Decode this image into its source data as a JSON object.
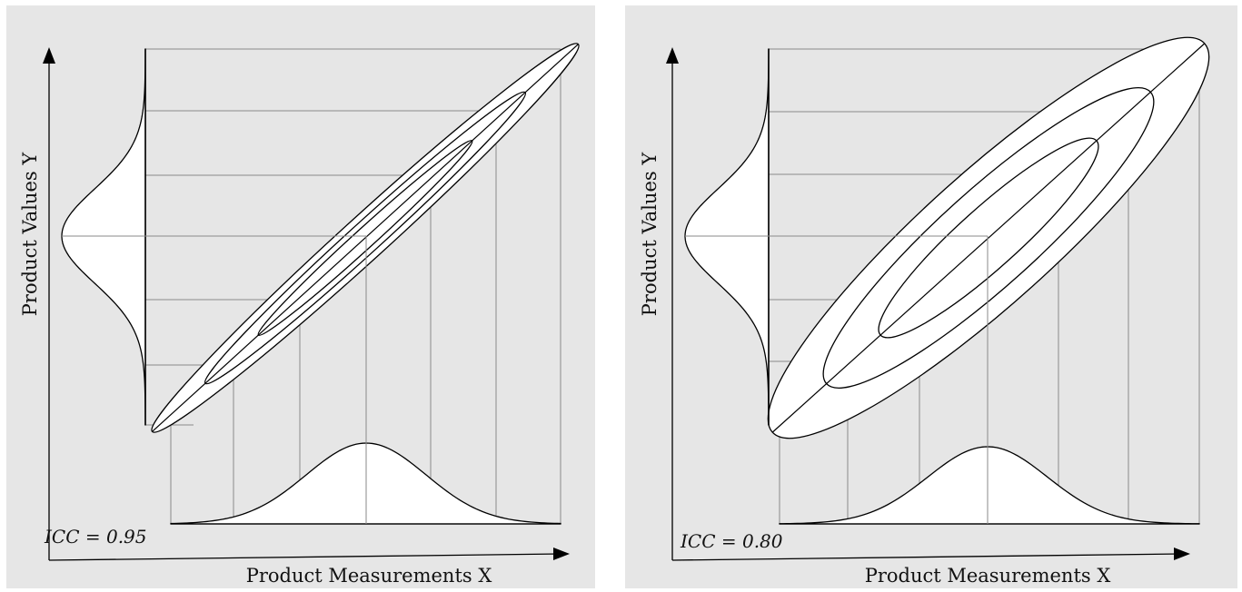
{
  "panels": [
    {
      "id": "left",
      "icc_label": "ICC = 0.95",
      "x_axis_label": "Product Measurements X",
      "y_axis_label": "Product Values Y"
    },
    {
      "id": "right",
      "icc_label": "ICC = 0.80",
      "x_axis_label": "Product Measurements X",
      "y_axis_label": "Product Values Y"
    }
  ],
  "colors": {
    "panel_background": "#e6e6e6",
    "grid_line": "#8a8a8a",
    "curve": "#000000",
    "fill": "#ffffff"
  }
}
